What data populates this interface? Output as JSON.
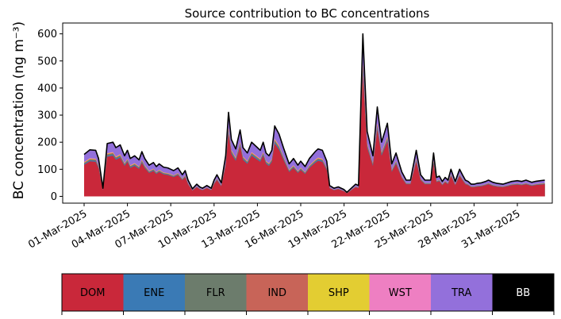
{
  "chart_data": {
    "type": "area",
    "stacked": true,
    "title": "Source contribution to BC concentrations",
    "xlabel": "",
    "ylabel": "BC concentration (ng m⁻³)",
    "ylim": [
      -25,
      640
    ],
    "yticks": [
      0,
      100,
      200,
      300,
      400,
      500,
      600
    ],
    "x_days": [
      0,
      0.4,
      0.8,
      1.0,
      1.3,
      1.6,
      2.0,
      2.2,
      2.5,
      2.8,
      3.0,
      3.2,
      3.5,
      3.8,
      4.0,
      4.2,
      4.5,
      4.8,
      5.0,
      5.2,
      5.5,
      5.8,
      6.0,
      6.2,
      6.5,
      6.8,
      7.0,
      7.2,
      7.5,
      7.8,
      8.0,
      8.2,
      8.5,
      8.8,
      9.0,
      9.2,
      9.5,
      9.8,
      10.0,
      10.2,
      10.5,
      10.8,
      11.0,
      11.3,
      11.6,
      12.0,
      12.2,
      12.4,
      12.6,
      12.8,
      13.0,
      13.2,
      13.5,
      13.8,
      14.0,
      14.2,
      14.5,
      14.8,
      15.0,
      15.3,
      15.6,
      16.0,
      16.2,
      16.5,
      16.8,
      17.0,
      17.3,
      17.6,
      18.0,
      18.2,
      18.5,
      18.8,
      19.0,
      19.3,
      19.6,
      20.0,
      20.3,
      20.6,
      21.0,
      21.3,
      21.6,
      22.0,
      22.3,
      22.6,
      23.0,
      23.3,
      23.6,
      24.0,
      24.2,
      24.4,
      24.6,
      24.8,
      25.0,
      25.2,
      25.4,
      25.7,
      26.0,
      26.2,
      26.4,
      26.6,
      26.8,
      27.0,
      27.2,
      27.5,
      27.8,
      28.0,
      28.3,
      28.6,
      29.0,
      29.3,
      29.6,
      30.0,
      30.3,
      30.6,
      31.0,
      31.3,
      31.6,
      31.9
    ],
    "total": [
      155,
      172,
      170,
      140,
      30,
      195,
      200,
      180,
      190,
      150,
      170,
      140,
      150,
      135,
      165,
      140,
      115,
      125,
      110,
      120,
      108,
      105,
      100,
      95,
      105,
      80,
      95,
      60,
      28,
      45,
      35,
      30,
      40,
      30,
      60,
      80,
      50,
      150,
      310,
      210,
      175,
      245,
      180,
      160,
      200,
      180,
      170,
      200,
      160,
      150,
      170,
      260,
      230,
      180,
      150,
      120,
      140,
      115,
      130,
      110,
      140,
      165,
      175,
      170,
      130,
      40,
      30,
      35,
      25,
      15,
      30,
      45,
      40,
      600,
      240,
      150,
      330,
      200,
      270,
      120,
      160,
      90,
      60,
      60,
      170,
      80,
      60,
      60,
      160,
      70,
      75,
      55,
      70,
      60,
      100,
      55,
      100,
      80,
      60,
      55,
      45,
      45,
      48,
      50,
      55,
      60,
      52,
      48,
      45,
      50,
      55,
      58,
      55,
      60,
      52,
      56,
      58,
      60
    ],
    "area_fractions_of_total": {
      "DOM": 0.75,
      "ENE": 0.77,
      "FLR": 0.79,
      "IND": 0.8,
      "SHP": 0.81,
      "WST": 0.82,
      "TRA": 1.0
    },
    "xtick_labels": [
      "01-Mar-2025",
      "04-Mar-2025",
      "07-Mar-2025",
      "10-Mar-2025",
      "13-Mar-2025",
      "16-Mar-2025",
      "19-Mar-2025",
      "22-Mar-2025",
      "25-Mar-2025",
      "28-Mar-2025",
      "31-Mar-2025"
    ],
    "xtick_days": [
      0,
      3,
      6,
      9,
      12,
      15,
      18,
      21,
      24,
      27,
      30
    ],
    "series": [
      {
        "name": "DOM",
        "color": "#c9283a"
      },
      {
        "name": "ENE",
        "color": "#3a7ab5"
      },
      {
        "name": "FLR",
        "color": "#6c7c6c"
      },
      {
        "name": "IND",
        "color": "#c86458"
      },
      {
        "name": "SHP",
        "color": "#e3cd32"
      },
      {
        "name": "WST",
        "color": "#ee7fc2"
      },
      {
        "name": "TRA",
        "color": "#9370db"
      },
      {
        "name": "BB",
        "color": "#000000"
      }
    ],
    "legend_text_colors": [
      "#000000",
      "#000000",
      "#000000",
      "#000000",
      "#000000",
      "#000000",
      "#000000",
      "#ffffff"
    ],
    "total_line_color": "#000000"
  }
}
